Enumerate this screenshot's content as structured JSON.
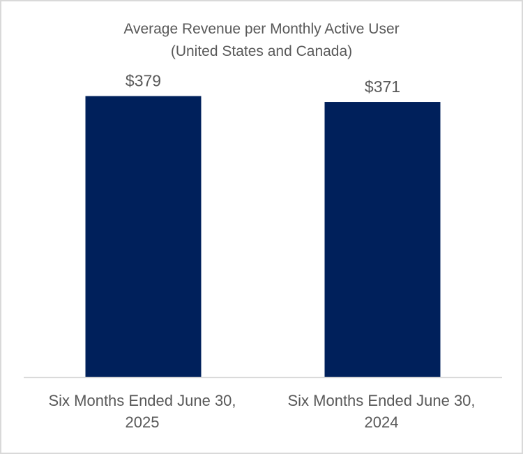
{
  "chart_data": {
    "type": "bar",
    "title": "Average Revenue per Monthly Active User",
    "subtitle": "(United States and Canada)",
    "categories": [
      [
        "Six Months Ended June 30,",
        "2025"
      ],
      [
        "Six Months Ended June 30,",
        "2024"
      ]
    ],
    "values": [
      379,
      371
    ],
    "data_labels": [
      "$379",
      "$371"
    ],
    "ylim": [
      0,
      420
    ],
    "grid": false,
    "legend": "none",
    "colors": {
      "bar": "#00205b",
      "axis": "#d9d9d9",
      "text": "#595959"
    }
  }
}
